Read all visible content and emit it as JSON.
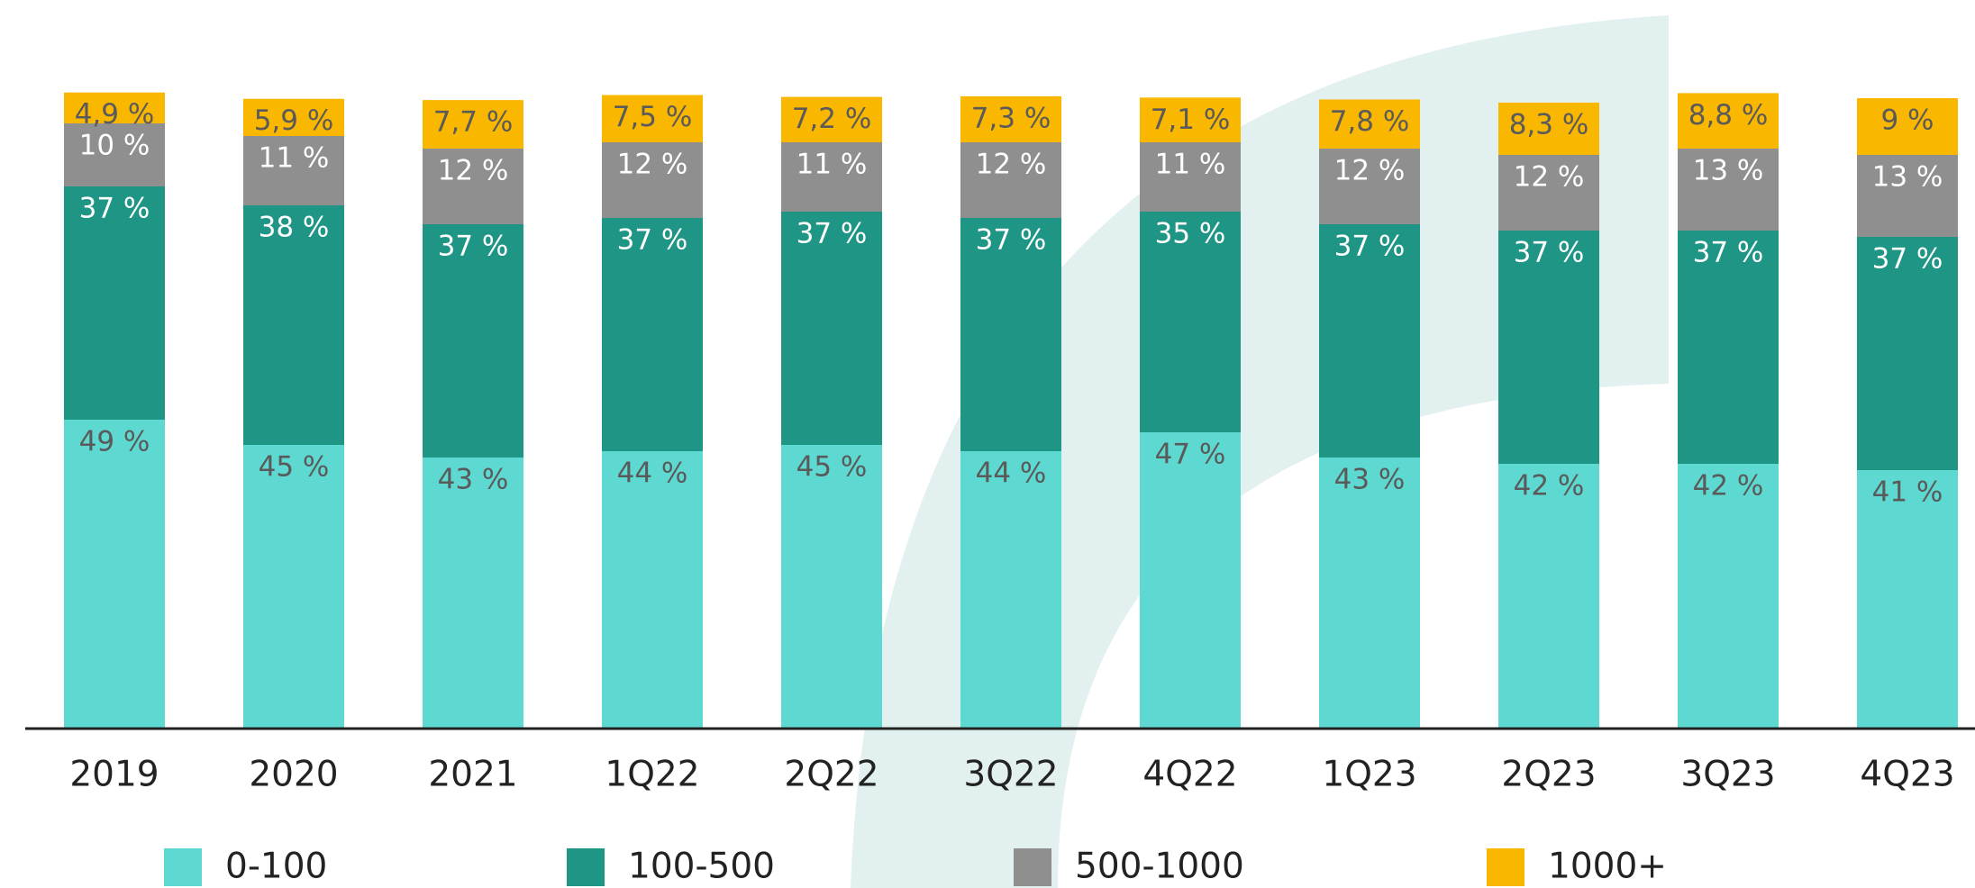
{
  "chart_data": {
    "type": "stacked_bar",
    "categories": [
      "2019",
      "2020",
      "2021",
      "1Q22",
      "2Q22",
      "3Q22",
      "4Q22",
      "1Q23",
      "2Q23",
      "3Q23",
      "4Q23"
    ],
    "series": [
      {
        "name": "0-100",
        "color": "#5dd9d1",
        "values": [
          49,
          45,
          43,
          44,
          45,
          44,
          47,
          43,
          42,
          42,
          41
        ],
        "value_labels": [
          "49 %",
          "45 %",
          "43 %",
          "44 %",
          "45 %",
          "44 %",
          "47 %",
          "43 %",
          "42 %",
          "42 %",
          "41 %"
        ]
      },
      {
        "name": "100-500",
        "color": "#1e9585",
        "values": [
          37,
          38,
          37,
          37,
          37,
          37,
          35,
          37,
          37,
          37,
          37
        ],
        "value_labels": [
          "37 %",
          "38 %",
          "37 %",
          "37 %",
          "37 %",
          "37 %",
          "35 %",
          "37 %",
          "37 %",
          "37 %",
          "37 %"
        ]
      },
      {
        "name": "500-1000",
        "color": "#8f8f8f",
        "values": [
          10,
          11,
          12,
          12,
          11,
          12,
          11,
          12,
          12,
          13,
          13
        ],
        "value_labels": [
          "10 %",
          "11 %",
          "12 %",
          "12 %",
          "11 %",
          "12 %",
          "11 %",
          "12 %",
          "12 %",
          "13 %",
          "13 %"
        ]
      },
      {
        "name": "1000+",
        "color": "#f9b700",
        "values": [
          4.9,
          5.9,
          7.7,
          7.5,
          7.2,
          7.3,
          7.1,
          7.8,
          8.3,
          8.8,
          9
        ],
        "value_labels": [
          "4,9 %",
          "5,9 %",
          "7,7 %",
          "7,5 %",
          "7,2 %",
          "7,3 %",
          "7,1 %",
          "7,8 %",
          "8,3 %",
          "8,8 %",
          "9 %"
        ]
      }
    ]
  }
}
